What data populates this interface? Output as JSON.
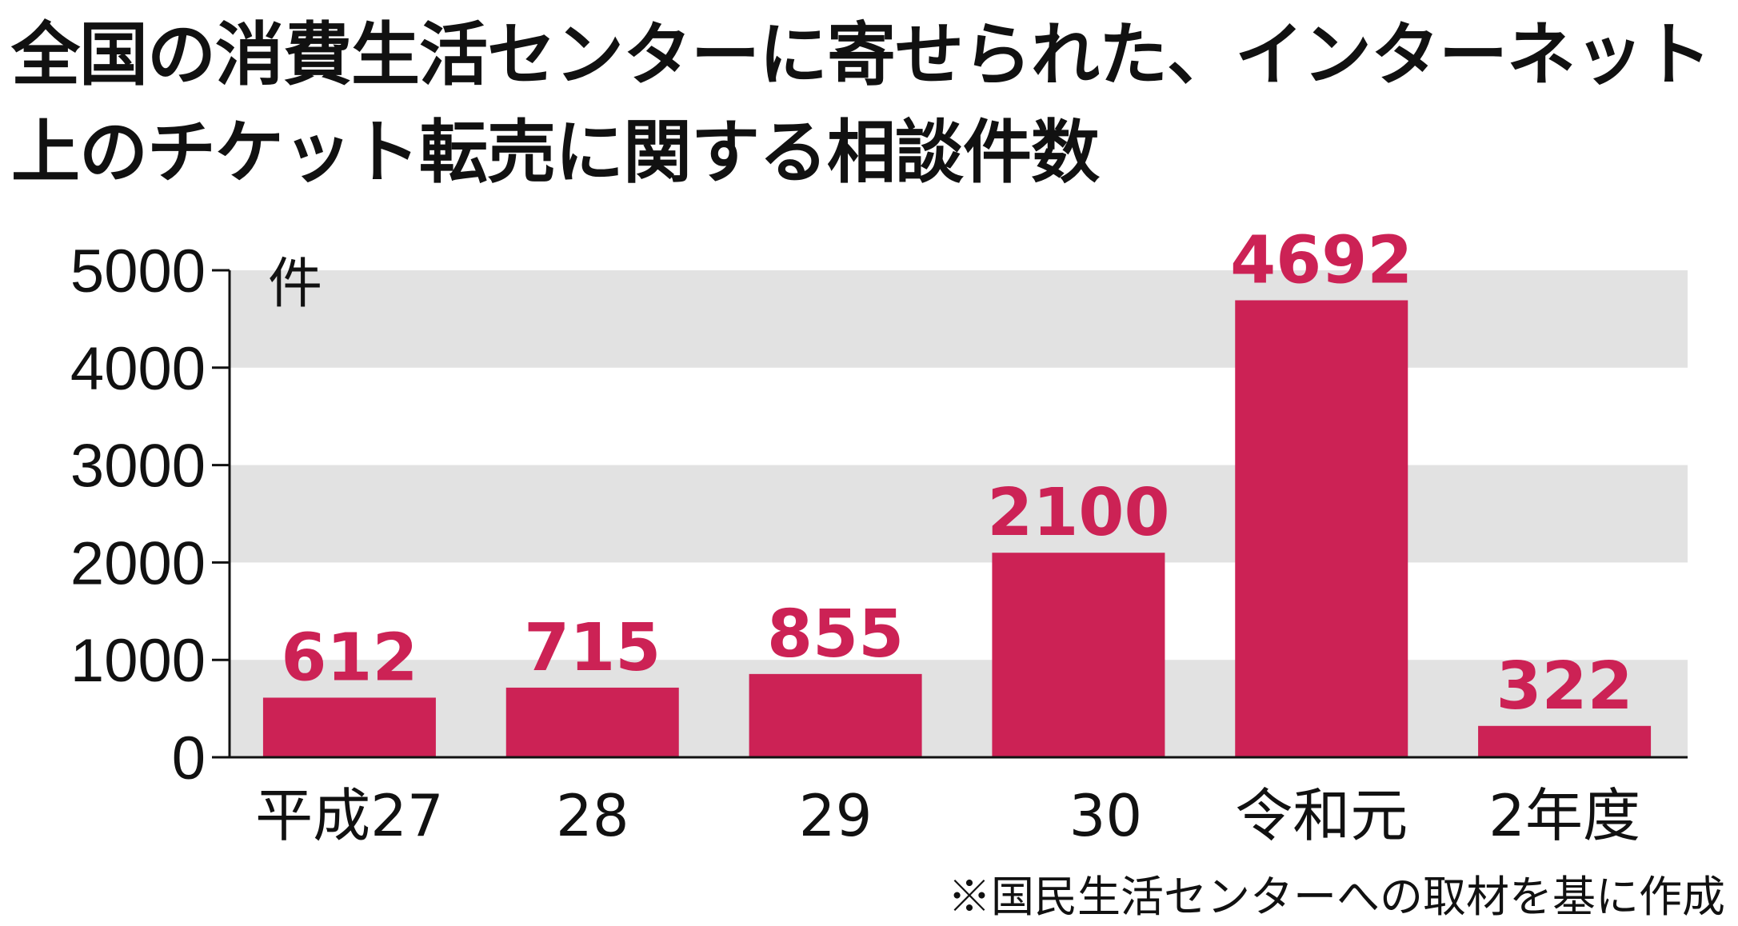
{
  "title": "全国の消費生活センターに寄せられた、インターネット上のチケット転売に関する相談件数",
  "source_note": "※国民生活センターへの取材を基に作成",
  "colors": {
    "bar": "#cc2255",
    "value_label": "#cc2255",
    "band": "#e2e2e2",
    "axis": "#111111"
  },
  "chart_data": {
    "type": "bar",
    "title": "全国の消費生活センターに寄せられた、インターネット上のチケット転売に関する相談件数",
    "categories": [
      "平成27",
      "28",
      "29",
      "30",
      "令和元",
      "2年度"
    ],
    "values": [
      612,
      715,
      855,
      2100,
      4692,
      322
    ],
    "ylabel": "件",
    "ylim": [
      0,
      5000
    ],
    "yticks": [
      0,
      1000,
      2000,
      3000,
      4000,
      5000
    ],
    "grid": "alternating horizontal bands",
    "legend": "none",
    "data_labels": [
      "612",
      "715",
      "855",
      "2100",
      "4692",
      "322"
    ]
  }
}
